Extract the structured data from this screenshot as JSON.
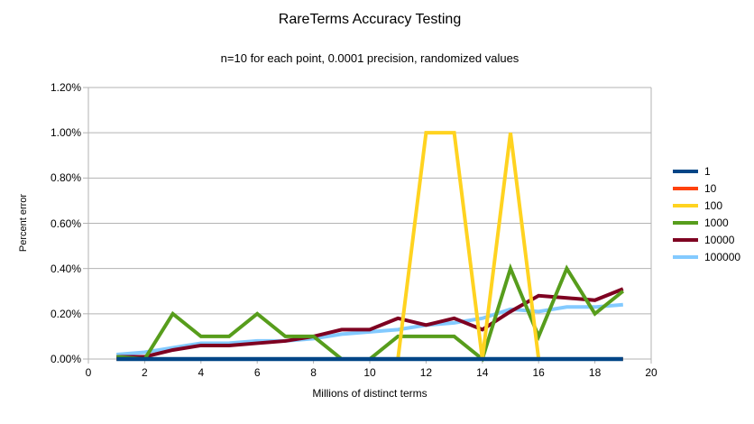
{
  "chart_data": {
    "type": "line",
    "title": "RareTerms Accuracy Testing",
    "subtitle": "n=10 for each point, 0.0001 precision, randomized values",
    "xlabel": "Millions of distinct terms",
    "ylabel": "Percent error",
    "x_range": [
      0,
      20
    ],
    "y_range_percent": [
      0,
      1.2
    ],
    "x_tick_labels": [
      "0",
      "2",
      "4",
      "6",
      "8",
      "10",
      "12",
      "14",
      "16",
      "18",
      "20"
    ],
    "x_tick_values": [
      0,
      2,
      4,
      6,
      8,
      10,
      12,
      14,
      16,
      18,
      20
    ],
    "y_tick_labels": [
      "0.00%",
      "0.20%",
      "0.40%",
      "0.60%",
      "0.80%",
      "1.00%",
      "1.20%"
    ],
    "y_tick_values_percent": [
      0,
      0.2,
      0.4,
      0.6,
      0.8,
      1.0,
      1.2
    ],
    "grid": "horizontal-only",
    "legend_position": "right",
    "x": [
      1,
      2,
      3,
      4,
      5,
      6,
      7,
      8,
      9,
      10,
      11,
      12,
      13,
      14,
      15,
      16,
      17,
      18,
      19
    ],
    "series": [
      {
        "name": "1",
        "color": "#004586",
        "values_percent": [
          0,
          0,
          0,
          0,
          0,
          0,
          0,
          0,
          0,
          0,
          0,
          0,
          0,
          0,
          0,
          0,
          0,
          0,
          0
        ]
      },
      {
        "name": "10",
        "color": "#ff420e",
        "values_percent": [
          0,
          0,
          0,
          0,
          0,
          0,
          0,
          0,
          0,
          0,
          0,
          0,
          0,
          0,
          0,
          0,
          0,
          0,
          0
        ]
      },
      {
        "name": "100",
        "color": "#ffd320",
        "values_percent": [
          0,
          0,
          0,
          0,
          0,
          0,
          0,
          0,
          0,
          0,
          0,
          1.0,
          1.0,
          0,
          1.0,
          0,
          0,
          0,
          0
        ]
      },
      {
        "name": "1000",
        "color": "#579d1c",
        "values_percent": [
          0.01,
          0,
          0.2,
          0.1,
          0.1,
          0.2,
          0.1,
          0.1,
          0,
          0,
          0.1,
          0.1,
          0.1,
          0,
          0.4,
          0.1,
          0.4,
          0.2,
          0.3
        ]
      },
      {
        "name": "10000",
        "color": "#7e0021",
        "values_percent": [
          0.01,
          0.01,
          0.04,
          0.06,
          0.06,
          0.07,
          0.08,
          0.1,
          0.13,
          0.13,
          0.18,
          0.15,
          0.18,
          0.13,
          0.21,
          0.28,
          0.27,
          0.26,
          0.31
        ]
      },
      {
        "name": "100000",
        "color": "#83caff",
        "values_percent": [
          0.02,
          0.03,
          0.05,
          0.07,
          0.07,
          0.08,
          0.08,
          0.09,
          0.11,
          0.12,
          0.13,
          0.15,
          0.16,
          0.18,
          0.22,
          0.21,
          0.23,
          0.23,
          0.24
        ]
      }
    ],
    "draw_order_names": [
      "100000",
      "10000",
      "1000",
      "100",
      "10",
      "1"
    ]
  },
  "colors": {
    "grid": "#b3b3b3",
    "axis": "#b3b3b3",
    "background": "#ffffff",
    "text": "#000000"
  }
}
